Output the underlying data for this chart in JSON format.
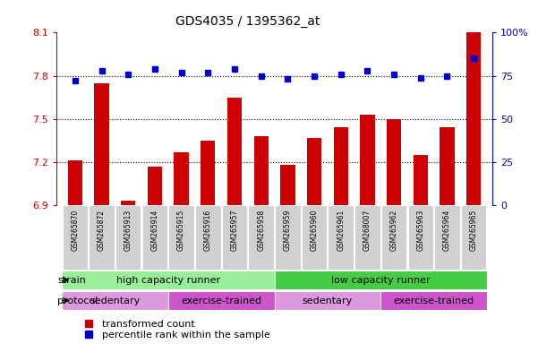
{
  "title": "GDS4035 / 1395362_at",
  "samples": [
    "GSM265870",
    "GSM265872",
    "GSM265913",
    "GSM265914",
    "GSM265915",
    "GSM265916",
    "GSM265957",
    "GSM265958",
    "GSM265959",
    "GSM265960",
    "GSM265961",
    "GSM268007",
    "GSM265962",
    "GSM265963",
    "GSM265964",
    "GSM265965"
  ],
  "bar_values": [
    7.21,
    7.75,
    6.93,
    7.17,
    7.27,
    7.35,
    7.65,
    7.38,
    7.18,
    7.37,
    7.44,
    7.53,
    7.5,
    7.25,
    7.44,
    8.1
  ],
  "dot_values": [
    72,
    78,
    76,
    79,
    77,
    77,
    79,
    75,
    73,
    75,
    76,
    78,
    76,
    74,
    75,
    85
  ],
  "ylim_left": [
    6.9,
    8.1
  ],
  "ylim_right": [
    0,
    100
  ],
  "yticks_left": [
    6.9,
    7.2,
    7.5,
    7.8,
    8.1
  ],
  "yticks_right": [
    0,
    25,
    50,
    75,
    100
  ],
  "bar_color": "#cc0000",
  "dot_color": "#0000cc",
  "hline_values": [
    7.2,
    7.5,
    7.8
  ],
  "strain_groups": [
    {
      "label": "high capacity runner",
      "start": 0,
      "end": 8,
      "color": "#99ee99"
    },
    {
      "label": "low capacity runner",
      "start": 8,
      "end": 16,
      "color": "#44cc44"
    }
  ],
  "protocol_groups": [
    {
      "label": "sedentary",
      "start": 0,
      "end": 4,
      "color": "#dd99dd"
    },
    {
      "label": "exercise-trained",
      "start": 4,
      "end": 8,
      "color": "#cc55cc"
    },
    {
      "label": "sedentary",
      "start": 8,
      "end": 12,
      "color": "#dd99dd"
    },
    {
      "label": "exercise-trained",
      "start": 12,
      "end": 16,
      "color": "#cc55cc"
    }
  ],
  "legend_red_label": "transformed count",
  "legend_blue_label": "percentile rank within the sample",
  "strain_label": "strain",
  "protocol_label": "protocol",
  "sample_bg_color": "#d0d0d0",
  "sample_border_color": "#aaaaaa"
}
